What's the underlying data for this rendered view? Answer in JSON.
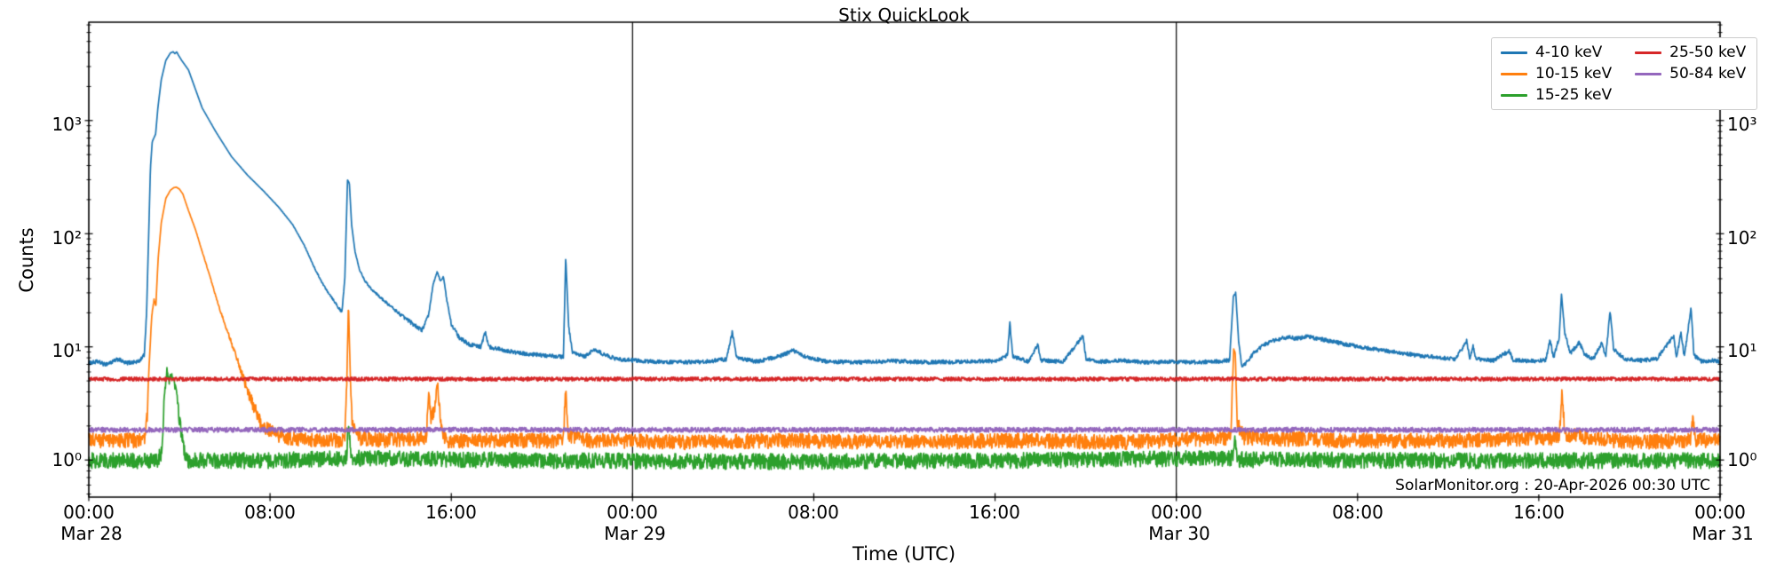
{
  "title": "Stix QuickLook",
  "annotation": "SolarMonitor.org : 20-Apr-2026 00:30 UTC",
  "axes": {
    "ylabel": "Counts",
    "xlabel": "Time (UTC)",
    "y_tick_labels": [
      "10³",
      "10²",
      "10¹",
      "10⁰"
    ],
    "x_ticks": [
      {
        "time": "00:00",
        "day": "Mar 28"
      },
      {
        "time": "08:00"
      },
      {
        "time": "16:00"
      },
      {
        "time": "00:00",
        "day": "Mar 29"
      },
      {
        "time": "08:00"
      },
      {
        "time": "16:00"
      },
      {
        "time": "00:00",
        "day": "Mar 30"
      },
      {
        "time": "08:00"
      },
      {
        "time": "16:00"
      },
      {
        "time": "00:00",
        "day": "Mar 31"
      }
    ]
  },
  "legend": {
    "columns": [
      [
        {
          "label": "4-10 keV",
          "color": "#1f77b4"
        },
        {
          "label": "10-15 keV",
          "color": "#ff7f0e"
        },
        {
          "label": "15-25 keV",
          "color": "#2ca02c"
        }
      ],
      [
        {
          "label": "25-50 keV",
          "color": "#d62728"
        },
        {
          "label": "50-84 keV",
          "color": "#9467bd"
        }
      ]
    ]
  },
  "chart_data": {
    "type": "line",
    "title": "Stix QuickLook",
    "xlabel": "Time (UTC)",
    "ylabel": "Counts",
    "yscale": "log",
    "ylim": [
      0.47,
      7400
    ],
    "x_start": "Mar 28 00:00",
    "x_end": "Mar 31 00:00",
    "x_range_hours": [
      0,
      72
    ],
    "x_major_tick_hours": 8,
    "panel_boundaries_hours": [
      24,
      48
    ],
    "grid": false,
    "legend_position": "upper right",
    "series": [
      {
        "name": "4-10 keV",
        "color": "#1f77b4",
        "baseline": 7.3,
        "noise": 0.04,
        "keypoints": [
          [
            0,
            7.2
          ],
          [
            0.4,
            7.4
          ],
          [
            0.7,
            7.0
          ],
          [
            1.0,
            7.3
          ],
          [
            1.3,
            7.8
          ],
          [
            1.6,
            7.2
          ],
          [
            1.9,
            7.3
          ],
          [
            2.2,
            7.4
          ],
          [
            2.45,
            8.5
          ],
          [
            2.55,
            20
          ],
          [
            2.65,
            110
          ],
          [
            2.72,
            380
          ],
          [
            2.8,
            650
          ],
          [
            2.95,
            760
          ],
          [
            3.05,
            1300
          ],
          [
            3.2,
            2300
          ],
          [
            3.4,
            3400
          ],
          [
            3.6,
            3950
          ],
          [
            3.72,
            4060
          ],
          [
            3.8,
            3900
          ],
          [
            3.88,
            4050
          ],
          [
            3.95,
            3800
          ],
          [
            4.1,
            3400
          ],
          [
            4.4,
            2800
          ],
          [
            5.0,
            1300
          ],
          [
            5.6,
            800
          ],
          [
            6.3,
            480
          ],
          [
            7.0,
            330
          ],
          [
            7.7,
            240
          ],
          [
            8.4,
            170
          ],
          [
            9.0,
            120
          ],
          [
            9.5,
            80
          ],
          [
            10.0,
            48
          ],
          [
            10.4,
            34
          ],
          [
            10.8,
            26
          ],
          [
            11.17,
            20
          ],
          [
            11.3,
            40
          ],
          [
            11.42,
            300
          ],
          [
            11.5,
            280
          ],
          [
            11.6,
            120
          ],
          [
            11.75,
            70
          ],
          [
            11.95,
            48
          ],
          [
            12.2,
            38
          ],
          [
            12.5,
            32
          ],
          [
            12.9,
            27
          ],
          [
            13.3,
            23
          ],
          [
            13.8,
            19
          ],
          [
            14.3,
            16
          ],
          [
            14.7,
            14
          ],
          [
            15.0,
            19
          ],
          [
            15.2,
            36
          ],
          [
            15.38,
            46
          ],
          [
            15.52,
            38
          ],
          [
            15.65,
            42
          ],
          [
            15.8,
            26
          ],
          [
            16.0,
            16
          ],
          [
            16.35,
            12
          ],
          [
            16.8,
            10.5
          ],
          [
            17.3,
            10
          ],
          [
            17.5,
            13.5
          ],
          [
            17.65,
            10
          ],
          [
            18.2,
            9.5
          ],
          [
            19.0,
            8.8
          ],
          [
            20.0,
            8.4
          ],
          [
            20.95,
            8.2
          ],
          [
            21.05,
            62
          ],
          [
            21.18,
            15
          ],
          [
            21.35,
            8.8
          ],
          [
            21.9,
            8.2
          ],
          [
            22.3,
            9.5
          ],
          [
            22.7,
            8.6
          ],
          [
            23.3,
            7.8
          ],
          [
            24,
            7.6
          ],
          [
            25,
            7.4
          ],
          [
            26,
            7.3
          ],
          [
            27.2,
            7.4
          ],
          [
            28.15,
            7.8
          ],
          [
            28.4,
            13.5
          ],
          [
            28.6,
            8.0
          ],
          [
            29.5,
            7.4
          ],
          [
            30.6,
            8.4
          ],
          [
            31.1,
            9.3
          ],
          [
            31.6,
            8.2
          ],
          [
            32.6,
            7.4
          ],
          [
            34,
            7.3
          ],
          [
            35.5,
            7.5
          ],
          [
            37,
            7.3
          ],
          [
            38.5,
            7.4
          ],
          [
            40.1,
            7.5
          ],
          [
            40.55,
            8.5
          ],
          [
            40.65,
            16.5
          ],
          [
            40.78,
            8.2
          ],
          [
            41.5,
            7.4
          ],
          [
            41.88,
            10.5
          ],
          [
            42.02,
            7.6
          ],
          [
            43.0,
            7.4
          ],
          [
            43.88,
            12.5
          ],
          [
            44.02,
            7.8
          ],
          [
            44.6,
            7.4
          ],
          [
            45.6,
            7.6
          ],
          [
            46.6,
            7.3
          ],
          [
            47.6,
            7.4
          ],
          [
            48.6,
            7.3
          ],
          [
            49.6,
            7.4
          ],
          [
            50.35,
            7.6
          ],
          [
            50.52,
            28
          ],
          [
            50.62,
            30
          ],
          [
            50.75,
            11
          ],
          [
            50.9,
            6.6
          ],
          [
            51.1,
            7.3
          ],
          [
            51.45,
            9
          ],
          [
            51.9,
            10.5
          ],
          [
            52.4,
            11.6
          ],
          [
            52.9,
            12.2
          ],
          [
            53.3,
            11.8
          ],
          [
            53.7,
            12.3
          ],
          [
            54.2,
            11.9
          ],
          [
            54.7,
            11.4
          ],
          [
            55.3,
            10.7
          ],
          [
            56.0,
            10.1
          ],
          [
            56.8,
            9.5
          ],
          [
            57.6,
            9.0
          ],
          [
            58.5,
            8.5
          ],
          [
            59.5,
            8.1
          ],
          [
            60.3,
            7.8
          ],
          [
            60.7,
            10.2
          ],
          [
            60.82,
            11.3
          ],
          [
            60.95,
            7.9
          ],
          [
            61.1,
            10.2
          ],
          [
            61.22,
            7.8
          ],
          [
            62.0,
            7.6
          ],
          [
            62.7,
            9.2
          ],
          [
            62.85,
            7.7
          ],
          [
            63.6,
            7.5
          ],
          [
            64.3,
            7.6
          ],
          [
            64.5,
            11.5
          ],
          [
            64.65,
            8.0
          ],
          [
            64.9,
            12
          ],
          [
            65.0,
            29
          ],
          [
            65.15,
            13
          ],
          [
            65.4,
            8.8
          ],
          [
            65.8,
            11
          ],
          [
            66.0,
            8.6
          ],
          [
            66.4,
            7.8
          ],
          [
            66.8,
            11
          ],
          [
            66.95,
            8.0
          ],
          [
            67.15,
            21
          ],
          [
            67.3,
            9.5
          ],
          [
            67.8,
            7.8
          ],
          [
            68.5,
            7.6
          ],
          [
            69.2,
            7.8
          ],
          [
            69.95,
            12.5
          ],
          [
            70.08,
            8.0
          ],
          [
            70.28,
            13.5
          ],
          [
            70.42,
            8.1
          ],
          [
            70.72,
            22
          ],
          [
            70.85,
            8.4
          ],
          [
            71.2,
            7.4
          ],
          [
            71.6,
            7.6
          ],
          [
            72,
            7.4
          ]
        ]
      },
      {
        "name": "10-15 keV",
        "color": "#ff7f0e",
        "baseline": 1.5,
        "noise": 0.15,
        "keypoints": [
          [
            0,
            1.5
          ],
          [
            2.45,
            1.5
          ],
          [
            2.58,
            2.5
          ],
          [
            2.68,
            8
          ],
          [
            2.78,
            19
          ],
          [
            2.88,
            26
          ],
          [
            2.96,
            23
          ],
          [
            3.06,
            60
          ],
          [
            3.2,
            125
          ],
          [
            3.4,
            205
          ],
          [
            3.6,
            242
          ],
          [
            3.75,
            255
          ],
          [
            3.86,
            258
          ],
          [
            4.0,
            248
          ],
          [
            4.15,
            225
          ],
          [
            4.4,
            160
          ],
          [
            4.7,
            110
          ],
          [
            5.0,
            70
          ],
          [
            5.35,
            42
          ],
          [
            5.7,
            24
          ],
          [
            6.0,
            16
          ],
          [
            6.4,
            9.5
          ],
          [
            6.8,
            5.5
          ],
          [
            7.2,
            3.2
          ],
          [
            7.6,
            2.1
          ],
          [
            8.2,
            1.7
          ],
          [
            9.0,
            1.55
          ],
          [
            10.5,
            1.5
          ],
          [
            11.3,
            1.5
          ],
          [
            11.4,
            6
          ],
          [
            11.46,
            25
          ],
          [
            11.52,
            8
          ],
          [
            11.62,
            2.2
          ],
          [
            11.8,
            1.6
          ],
          [
            13,
            1.5
          ],
          [
            14.9,
            1.6
          ],
          [
            15.0,
            4.3
          ],
          [
            15.1,
            2.4
          ],
          [
            15.25,
            2.9
          ],
          [
            15.4,
            4.7
          ],
          [
            15.55,
            1.9
          ],
          [
            15.75,
            1.5
          ],
          [
            18,
            1.5
          ],
          [
            20.95,
            1.5
          ],
          [
            21.04,
            4.6
          ],
          [
            21.14,
            1.7
          ],
          [
            22,
            1.5
          ],
          [
            26,
            1.45
          ],
          [
            31,
            1.5
          ],
          [
            36,
            1.45
          ],
          [
            41,
            1.5
          ],
          [
            46,
            1.45
          ],
          [
            50.4,
            1.6
          ],
          [
            50.53,
            9.5
          ],
          [
            50.6,
            8.5
          ],
          [
            50.7,
            2.1
          ],
          [
            51.0,
            1.6
          ],
          [
            55,
            1.5
          ],
          [
            60,
            1.5
          ],
          [
            64.9,
            1.6
          ],
          [
            65.02,
            3.9
          ],
          [
            65.15,
            1.7
          ],
          [
            68,
            1.45
          ],
          [
            70.72,
            1.5
          ],
          [
            70.8,
            2.5
          ],
          [
            70.92,
            1.5
          ],
          [
            72,
            1.5
          ]
        ]
      },
      {
        "name": "15-25 keV",
        "color": "#2ca02c",
        "baseline": 1.0,
        "noise": 0.16,
        "keypoints": [
          [
            0,
            1.0
          ],
          [
            3.05,
            1.0
          ],
          [
            3.22,
            1.2
          ],
          [
            3.32,
            3.2
          ],
          [
            3.45,
            6.3
          ],
          [
            3.55,
            4.7
          ],
          [
            3.63,
            5.9
          ],
          [
            3.76,
            5.1
          ],
          [
            3.9,
            3.5
          ],
          [
            4.05,
            1.9
          ],
          [
            4.2,
            1.25
          ],
          [
            4.4,
            1.0
          ],
          [
            8,
            1.0
          ],
          [
            11.38,
            1.05
          ],
          [
            11.46,
            2.4
          ],
          [
            11.56,
            1.05
          ],
          [
            20,
            1.0
          ],
          [
            30,
            0.98
          ],
          [
            40,
            1.0
          ],
          [
            50.5,
            1.05
          ],
          [
            50.58,
            1.6
          ],
          [
            50.68,
            1.02
          ],
          [
            60,
            1.0
          ],
          [
            72,
            1.0
          ]
        ]
      },
      {
        "name": "25-50 keV",
        "color": "#d62728",
        "baseline": 5.2,
        "noise": 0.04,
        "keypoints": [
          [
            0,
            5.2
          ],
          [
            72,
            5.2
          ]
        ]
      },
      {
        "name": "50-84 keV",
        "color": "#9467bd",
        "baseline": 1.85,
        "noise": 0.05,
        "keypoints": [
          [
            0,
            1.85
          ],
          [
            72,
            1.85
          ]
        ]
      }
    ]
  }
}
